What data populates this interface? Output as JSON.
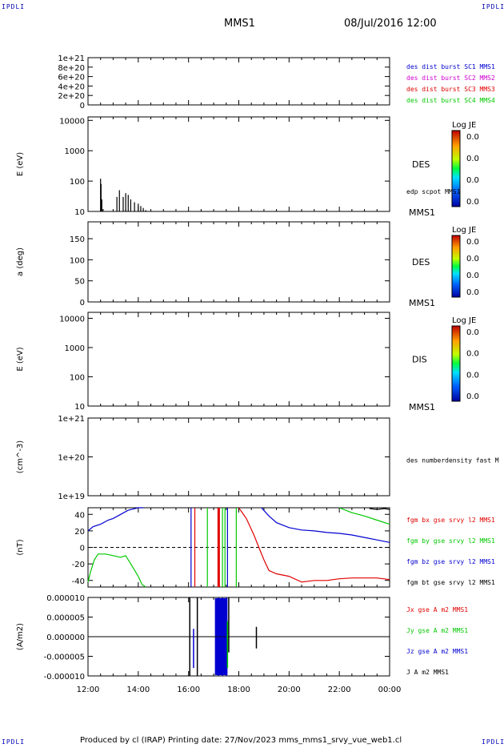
{
  "corner_labels": {
    "top_left": "IPDLI",
    "top_right": "IPDLI",
    "bottom_left": "IPDLI",
    "bottom_right": "IPDLI"
  },
  "header": {
    "title": "MMS1",
    "datetime": "08/Jul/2016 12:00"
  },
  "footer": "Produced by cl (IRAP)   Printing date: 27/Nov/2023   mms_mms1_srvy_vue_web1.cl",
  "colors": {
    "red": "#e00000",
    "green": "#00c800",
    "blue": "#0000d0",
    "black": "#000000",
    "magenta": "#d000d0"
  },
  "chart_data": [
    {
      "type": "line",
      "panel": 1,
      "ylim": [
        0,
        1e+21
      ],
      "yticks": [
        "0",
        "2e+20",
        "4e+20",
        "6e+20",
        "8e+20",
        "1e+21"
      ],
      "ylabel": "",
      "legend": [
        {
          "text": "des dist burst SC1 MMS1",
          "color": "#0000d0"
        },
        {
          "text": "des dist burst SC2 MMS2",
          "color": "#d000d0"
        },
        {
          "text": "des dist burst SC3 MMS3",
          "color": "#e00000"
        },
        {
          "text": "des dist burst SC4 MMS4",
          "color": "#00c800"
        }
      ],
      "dashed_reference": 0
    },
    {
      "type": "heatmap",
      "panel": 2,
      "ylabel": "E (eV)",
      "yscale": "log",
      "ylim": [
        10,
        13000
      ],
      "yticks": [
        "10",
        "100",
        "1000",
        "10000"
      ],
      "side_label": "DES",
      "side_sub": "MMS1",
      "overlay_label": "edp scpot MMS1",
      "colorbar": {
        "title": "Log JE",
        "ticks": [
          "0.0",
          "0.0",
          "0.0",
          "0.0"
        ]
      },
      "overlay_series": {
        "x_hours": [
          12.5,
          12.52,
          12.55,
          12.6,
          13.15,
          13.25,
          13.4,
          13.5,
          13.6,
          13.7,
          13.85,
          14.0,
          14.1,
          14.2,
          14.3
        ],
        "y": [
          120,
          80,
          25,
          12,
          30,
          50,
          30,
          40,
          35,
          25,
          20,
          18,
          15,
          13,
          11
        ]
      }
    },
    {
      "type": "heatmap",
      "panel": 3,
      "ylabel": "a (deg)",
      "ylim": [
        0,
        190
      ],
      "yticks": [
        "0",
        "50",
        "100",
        "150"
      ],
      "side_label": "DES",
      "side_sub": "MMS1",
      "colorbar": {
        "title": "Log JE",
        "ticks": [
          "0.0",
          "0.0",
          "0.0",
          "0.0"
        ]
      }
    },
    {
      "type": "heatmap",
      "panel": 4,
      "ylabel": "E (eV)",
      "yscale": "log",
      "ylim": [
        10,
        16000
      ],
      "yticks": [
        "10",
        "100",
        "1000",
        "10000"
      ],
      "side_label": "DIS",
      "side_sub": "MMS1",
      "colorbar": {
        "title": "Log JE",
        "ticks": [
          "0.0",
          "0.0",
          "0.0",
          "0.0"
        ]
      }
    },
    {
      "type": "line",
      "panel": 5,
      "ylabel": "(cm^-3)",
      "yscale": "log",
      "ylim": [
        1e+19,
        1e+21
      ],
      "yticks": [
        "1e+19",
        "1e+20",
        "1e+21"
      ],
      "legend": [
        {
          "text": "des numberdensity fast M",
          "color": "#000000"
        }
      ]
    },
    {
      "type": "line",
      "panel": 6,
      "ylabel": "(nT)",
      "ylim": [
        -48,
        48
      ],
      "yticks": [
        "-40",
        "-20",
        "0",
        "20",
        "40"
      ],
      "dashed_reference": 0,
      "legend": [
        {
          "text": "fgm bx gse srvy l2 MMS1",
          "color": "#e00000"
        },
        {
          "text": "fgm by gse srvy l2 MMS1",
          "color": "#00c800"
        },
        {
          "text": "fgm bz gse srvy l2 MMS1",
          "color": "#0000d0"
        },
        {
          "text": "fgm bt gse srvy l2 MMS1",
          "color": "#000000"
        }
      ],
      "series": [
        {
          "name": "fgm bz gse srvy l2 MMS1",
          "color": "#0000d0",
          "x": [
            12.0,
            12.2,
            12.5,
            12.8,
            13.0,
            13.3,
            13.6,
            14.0,
            14.2
          ],
          "y": [
            20,
            25,
            28,
            33,
            35,
            40,
            45,
            48,
            48
          ]
        },
        {
          "name": "fgm bz gse srvy l2 MMS1",
          "color": "#0000d0",
          "x": [
            18.9,
            19.2,
            19.5,
            20.0,
            20.5,
            21.0,
            21.5,
            22.0,
            22.5,
            23.0,
            23.5,
            24.0
          ],
          "y": [
            48,
            38,
            30,
            24,
            21,
            20,
            18,
            17,
            15,
            12,
            9,
            6
          ]
        },
        {
          "name": "fgm by gse srvy l2 MMS1",
          "color": "#00c800",
          "x": [
            12.0,
            12.1,
            12.25,
            12.4,
            12.7,
            13.0,
            13.3,
            13.5,
            13.8,
            14.0,
            14.15,
            14.3
          ],
          "y": [
            -42,
            -30,
            -15,
            -8,
            -8,
            -10,
            -12,
            -10,
            -25,
            -35,
            -45,
            -48
          ]
        },
        {
          "name": "fgm by gse srvy l2 MMS1",
          "color": "#00c800",
          "x": [
            22.0,
            22.5,
            23.0,
            23.5,
            24.0
          ],
          "y": [
            48,
            42,
            38,
            33,
            28
          ]
        },
        {
          "name": "fgm bx gse srvy l2 MMS1",
          "color": "#e00000",
          "x": [
            18.0,
            18.3,
            18.6,
            18.8,
            19.0,
            19.2,
            19.5,
            20.0,
            20.5,
            21.0,
            21.5,
            22.0,
            22.5,
            23.0,
            23.5,
            24.0
          ],
          "y": [
            48,
            35,
            15,
            0,
            -15,
            -28,
            -32,
            -35,
            -42,
            -40,
            -40,
            -38,
            -37,
            -37,
            -37,
            -39
          ]
        },
        {
          "name": "fgm bt gse srvy l2 MMS1",
          "color": "#000000",
          "x": [
            23.2,
            23.5,
            23.8,
            24.0
          ],
          "y": [
            47,
            46,
            47,
            46
          ]
        }
      ],
      "vertical_spikes": [
        {
          "x": 16.1,
          "color": "#0000d0"
        },
        {
          "x": 16.25,
          "color": "#e00000"
        },
        {
          "x": 16.75,
          "color": "#00c800"
        },
        {
          "x": 17.2,
          "color": "#e00000"
        },
        {
          "x": 17.35,
          "color": "#00c800"
        },
        {
          "x": 17.45,
          "color": "#00c800"
        },
        {
          "x": 17.55,
          "color": "#0000d0"
        },
        {
          "x": 17.9,
          "color": "#00c800"
        }
      ]
    },
    {
      "type": "line",
      "panel": 7,
      "ylabel": "(A/m2)",
      "ylim": [
        -1e-05,
        1e-05
      ],
      "yticks": [
        "-0.000010",
        "-0.000005",
        "0.000000",
        "0.000005",
        "0.000010"
      ],
      "xticks": [
        "12:00",
        "14:00",
        "16:00",
        "18:00",
        "20:00",
        "22:00",
        "00:00"
      ],
      "xlim_hours": [
        12,
        24
      ],
      "legend": [
        {
          "text": "Jx gse A m2 MMS1",
          "color": "#e00000"
        },
        {
          "text": "Jy gse A m2 MMS1",
          "color": "#00c800"
        },
        {
          "text": "Jz gse A m2 MMS1",
          "color": "#0000d0"
        },
        {
          "text": "J A m2 MMS1",
          "color": "#000000"
        }
      ],
      "spikes": [
        {
          "x": 16.05,
          "y1": -1e-05,
          "y2": 1e-05,
          "color": "#000000"
        },
        {
          "x": 16.2,
          "y1": -8e-06,
          "y2": 2e-06,
          "color": "#0000d0"
        },
        {
          "x": 16.35,
          "y1": -1e-05,
          "y2": 1e-05,
          "color": "#000000"
        },
        {
          "x": 17.2,
          "y1": -1e-05,
          "y2": 1e-05,
          "color": "#0000d0"
        },
        {
          "x": 17.35,
          "y1": -1e-05,
          "y2": 1e-05,
          "color": "#0000d0"
        },
        {
          "x": 17.5,
          "y1": -1e-05,
          "y2": 1e-05,
          "color": "#0000d0"
        },
        {
          "x": 17.55,
          "y1": -8e-06,
          "y2": 4e-06,
          "color": "#00c800"
        },
        {
          "x": 17.6,
          "y1": -4e-06,
          "y2": 1e-05,
          "color": "#000000"
        },
        {
          "x": 18.7,
          "y1": -3e-06,
          "y2": 2.5e-06,
          "color": "#000000"
        }
      ],
      "band": {
        "x1": 17.05,
        "x2": 17.55,
        "color": "#0000d0"
      }
    }
  ]
}
